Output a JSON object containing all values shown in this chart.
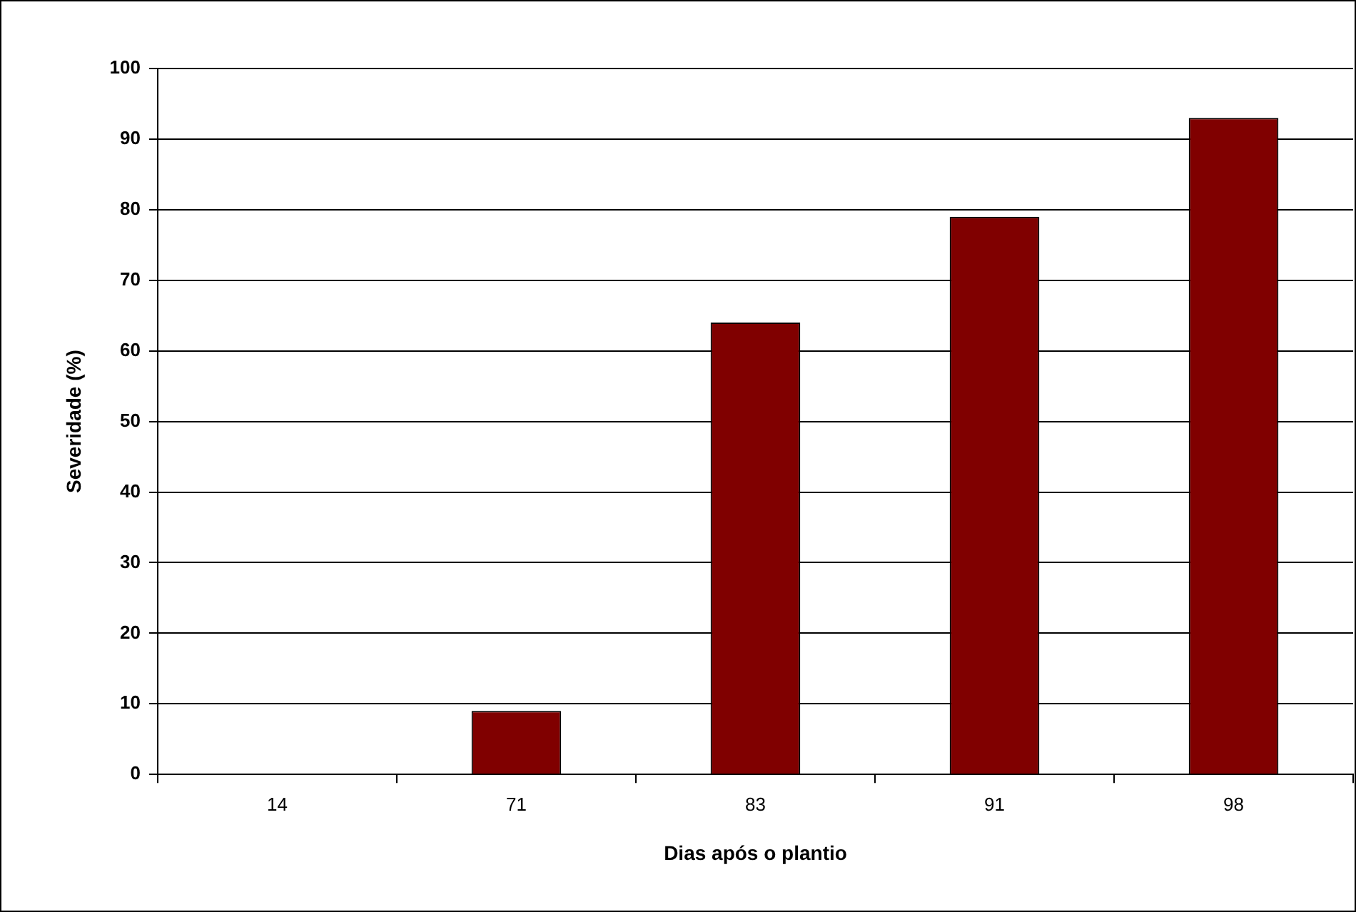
{
  "chart_data": {
    "type": "bar",
    "xlabel": "Dias após o plantio",
    "ylabel": "Severidade (%)",
    "categories": [
      "14",
      "71",
      "83",
      "91",
      "98"
    ],
    "values": [
      0,
      9,
      64,
      79,
      93
    ],
    "color": "#800000",
    "ylim": [
      0,
      100
    ],
    "yticks": [
      0,
      10,
      20,
      30,
      40,
      50,
      60,
      70,
      80,
      90,
      100
    ],
    "grid": "y",
    "legend": false
  }
}
